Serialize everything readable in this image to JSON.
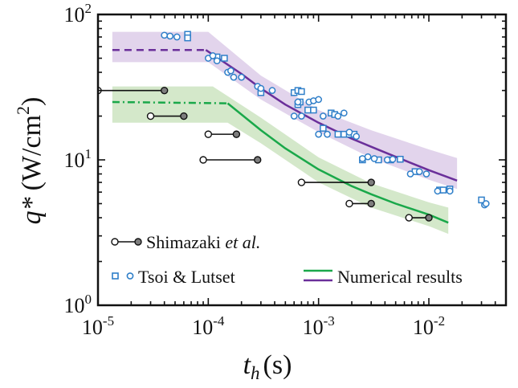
{
  "chart_data": {
    "type": "scatter",
    "x_scale": "log",
    "y_scale": "log",
    "xlim": [
      1e-05,
      0.05
    ],
    "ylim": [
      1,
      100
    ],
    "xlabel_main": "t",
    "xlabel_sub": "h",
    "xlabel_unit": "(s)",
    "ylabel_main": "q*",
    "ylabel_unit": "(W/cm",
    "ylabel_sup": "2",
    "ylabel_close": ")",
    "x_ticks": [
      {
        "value": 1e-05,
        "base": "10",
        "exp": "-5"
      },
      {
        "value": 0.0001,
        "base": "10",
        "exp": "-4"
      },
      {
        "value": 0.001,
        "base": "10",
        "exp": "-3"
      },
      {
        "value": 0.01,
        "base": "10",
        "exp": "-2"
      }
    ],
    "y_ticks": [
      {
        "value": 1,
        "base": "10",
        "exp": "0"
      },
      {
        "value": 10,
        "base": "10",
        "exp": "1"
      },
      {
        "value": 100,
        "base": "10",
        "exp": "2"
      }
    ],
    "legend": {
      "shimazaki_main": "Shimazaki ",
      "shimazaki_italic": "et al.",
      "tsoi": "Tsoi & Lutset",
      "numerical": "Numerical results"
    },
    "colors": {
      "purple_line": "#6a2f9a",
      "purple_band": "#ddcde9",
      "green_line": "#1aa84a",
      "green_band": "#cfe5c4",
      "tsoi_marker": "#2f7fc9",
      "shimazaki_filled": "#7d7d7d",
      "frame": "#111111"
    },
    "series": [
      {
        "name": "Numerical results",
        "color": "purple",
        "dashed_segment": [
          [
            1.35e-05,
            57
          ],
          [
            9.5e-05,
            57
          ]
        ],
        "line": [
          [
            9.5e-05,
            57
          ],
          [
            0.0002,
            39
          ],
          [
            0.0003,
            31
          ],
          [
            0.0005,
            24
          ],
          [
            0.001,
            18
          ],
          [
            0.002,
            14
          ],
          [
            0.003,
            12.3
          ],
          [
            0.005,
            10.5
          ],
          [
            0.01,
            8.5
          ],
          [
            0.018,
            7.2
          ]
        ],
        "band_upper": [
          [
            1.35e-05,
            76
          ],
          [
            0.0001,
            76
          ],
          [
            0.0003,
            38
          ],
          [
            0.001,
            22
          ],
          [
            0.003,
            16
          ],
          [
            0.01,
            11.8
          ],
          [
            0.018,
            10.3
          ]
        ],
        "band_lower": [
          [
            1.35e-05,
            47
          ],
          [
            0.0001,
            47
          ],
          [
            0.0003,
            26
          ],
          [
            0.001,
            15.5
          ],
          [
            0.003,
            10.3
          ],
          [
            0.01,
            7.3
          ],
          [
            0.018,
            6.3
          ]
        ]
      },
      {
        "name": "Numerical results",
        "color": "green",
        "dashed_segment": [
          [
            1.35e-05,
            25
          ],
          [
            0.00015,
            24.5
          ]
        ],
        "line": [
          [
            0.00015,
            24.5
          ],
          [
            0.0003,
            16
          ],
          [
            0.0005,
            12
          ],
          [
            0.001,
            8.6
          ],
          [
            0.002,
            6.6
          ],
          [
            0.003,
            5.8
          ],
          [
            0.005,
            5
          ],
          [
            0.01,
            4.2
          ],
          [
            0.015,
            3.7
          ]
        ],
        "band_upper": [
          [
            1.35e-05,
            32
          ],
          [
            0.00011,
            32
          ],
          [
            0.0003,
            19.5
          ],
          [
            0.001,
            10.4
          ],
          [
            0.003,
            6.9
          ],
          [
            0.01,
            5.1
          ],
          [
            0.015,
            4.7
          ]
        ],
        "band_lower": [
          [
            1.35e-05,
            18
          ],
          [
            0.00015,
            18
          ],
          [
            0.0003,
            13
          ],
          [
            0.001,
            7
          ],
          [
            0.003,
            4.7
          ],
          [
            0.01,
            3.5
          ],
          [
            0.015,
            3.1
          ]
        ]
      }
    ],
    "shimazaki_ranges": [
      {
        "x_open": 1e-05,
        "x_closed": 4e-05,
        "y": 30
      },
      {
        "x_open": 3e-05,
        "x_closed": 6e-05,
        "y": 20
      },
      {
        "x_open": 0.0001,
        "x_closed": 0.00018,
        "y": 15
      },
      {
        "x_open": 9e-05,
        "x_closed": 0.00028,
        "y": 10
      },
      {
        "x_open": 0.0007,
        "x_closed": 0.003,
        "y": 7
      },
      {
        "x_open": 0.0019,
        "x_closed": 0.003,
        "y": 5
      },
      {
        "x_open": 0.0066,
        "x_closed": 0.01,
        "y": 4
      }
    ],
    "tsoi_squares": [
      [
        6.5e-05,
        73
      ],
      [
        6.5e-05,
        69
      ],
      [
        0.00012,
        51
      ],
      [
        0.00014,
        50
      ],
      [
        0.0003,
        29
      ],
      [
        0.0006,
        29
      ],
      [
        0.00065,
        30
      ],
      [
        0.0007,
        29.5
      ],
      [
        0.00065,
        24
      ],
      [
        0.00068,
        25
      ],
      [
        0.0008,
        22
      ],
      [
        0.0009,
        22
      ],
      [
        0.0011,
        16.5
      ],
      [
        0.0013,
        21
      ],
      [
        0.0014,
        20.5
      ],
      [
        0.0015,
        15
      ],
      [
        0.0017,
        15
      ],
      [
        0.0019,
        15
      ],
      [
        0.0021,
        15
      ],
      [
        0.0025,
        10
      ],
      [
        0.0035,
        10
      ],
      [
        0.0045,
        10
      ],
      [
        0.0055,
        10.1
      ],
      [
        0.0075,
        8.3
      ],
      [
        0.0125,
        6.2
      ],
      [
        0.0135,
        6.2
      ],
      [
        0.0155,
        6.3
      ],
      [
        0.03,
        5.3
      ]
    ],
    "tsoi_circles": [
      [
        4e-05,
        72
      ],
      [
        4.5e-05,
        71
      ],
      [
        5.2e-05,
        70
      ],
      [
        0.0001,
        50
      ],
      [
        0.00011,
        52
      ],
      [
        0.00012,
        48
      ],
      [
        0.00015,
        40
      ],
      [
        0.00016,
        41
      ],
      [
        0.00017,
        37
      ],
      [
        0.0002,
        37
      ],
      [
        0.00028,
        32
      ],
      [
        0.0003,
        31
      ],
      [
        0.00038,
        30
      ],
      [
        0.00065,
        25
      ],
      [
        0.0006,
        20
      ],
      [
        0.0007,
        20
      ],
      [
        0.00082,
        25
      ],
      [
        0.0009,
        25.5
      ],
      [
        0.001,
        26
      ],
      [
        0.001,
        15
      ],
      [
        0.0011,
        20
      ],
      [
        0.0012,
        15
      ],
      [
        0.0015,
        20
      ],
      [
        0.0017,
        21
      ],
      [
        0.0019,
        15.5
      ],
      [
        0.0022,
        14.5
      ],
      [
        0.0025,
        10.2
      ],
      [
        0.0028,
        10.5
      ],
      [
        0.0032,
        10.2
      ],
      [
        0.0042,
        10
      ],
      [
        0.0047,
        10.1
      ],
      [
        0.0068,
        8
      ],
      [
        0.0082,
        8.3
      ],
      [
        0.0095,
        8
      ],
      [
        0.012,
        6.1
      ],
      [
        0.0155,
        6.1
      ],
      [
        0.032,
        4.9
      ],
      [
        0.033,
        5
      ]
    ]
  }
}
